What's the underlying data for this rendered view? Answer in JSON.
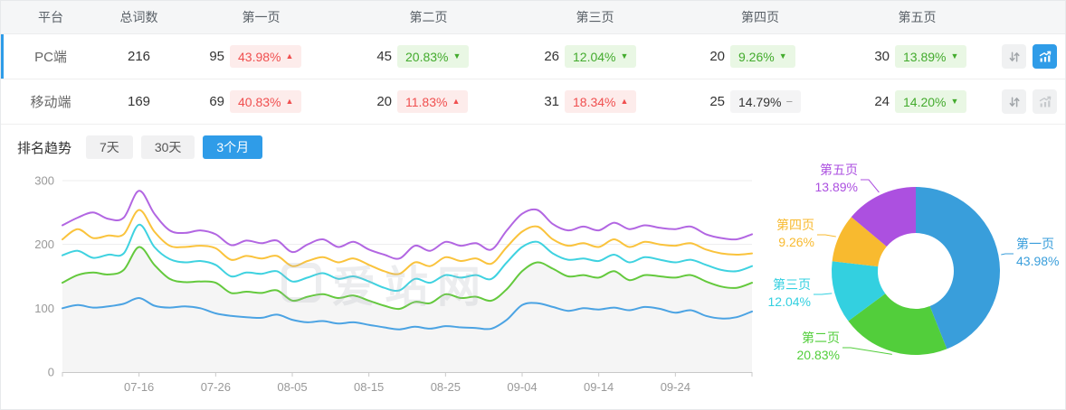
{
  "glyphs": {
    "up": "▲",
    "down": "▼",
    "flat": "−"
  },
  "colors": {
    "accent_blue": "#2f9ce8",
    "badge_up_text": "#f04f4f",
    "badge_up_bg": "#fdeceb",
    "badge_down_text": "#43ab2d",
    "badge_down_bg": "#e9f7e4",
    "badge_flat_bg": "#f4f4f5",
    "selected_row_bar": "#2f9ce8"
  },
  "icons": {
    "sort": "sort-arrows-icon",
    "trend": "trend-chart-icon"
  },
  "table": {
    "headers": [
      "平台",
      "总词数",
      "第一页",
      "第二页",
      "第三页",
      "第四页",
      "第五页"
    ],
    "rows": [
      {
        "platform": "PC端",
        "total": "216",
        "selected": true,
        "pages": [
          {
            "count": "95",
            "pct": "43.98%",
            "trend": "up"
          },
          {
            "count": "45",
            "pct": "20.83%",
            "trend": "down"
          },
          {
            "count": "26",
            "pct": "12.04%",
            "trend": "down"
          },
          {
            "count": "20",
            "pct": "9.26%",
            "trend": "down"
          },
          {
            "count": "30",
            "pct": "13.89%",
            "trend": "down"
          }
        ],
        "chart_button_active": true
      },
      {
        "platform": "移动端",
        "total": "169",
        "selected": false,
        "pages": [
          {
            "count": "69",
            "pct": "40.83%",
            "trend": "up"
          },
          {
            "count": "20",
            "pct": "11.83%",
            "trend": "up"
          },
          {
            "count": "31",
            "pct": "18.34%",
            "trend": "up"
          },
          {
            "count": "25",
            "pct": "14.79%",
            "trend": "flat"
          },
          {
            "count": "24",
            "pct": "14.20%",
            "trend": "down"
          }
        ],
        "chart_button_active": false
      }
    ]
  },
  "trend_section": {
    "title": "排名趋势",
    "tabs": [
      {
        "label": "7天",
        "active": false
      },
      {
        "label": "30天",
        "active": false
      },
      {
        "label": "3个月",
        "active": true
      }
    ]
  },
  "watermark": "爱站网",
  "chart_data": [
    {
      "type": "line",
      "title": "排名趋势 3个月",
      "stacked_cumulative": true,
      "grid": true,
      "ylim": [
        0,
        300
      ],
      "y_ticks": [
        0,
        100,
        200,
        300
      ],
      "x_range_days": [
        0,
        90
      ],
      "sample_step_days": 2,
      "x_tick_days": [
        10,
        20,
        30,
        40,
        50,
        60,
        70,
        80
      ],
      "x_tick_labels": [
        "07-16",
        "07-26",
        "08-05",
        "08-15",
        "08-25",
        "09-04",
        "09-14",
        "09-24"
      ],
      "series": [
        {
          "name": "第一页",
          "color": "#4ba3e3",
          "values": [
            100,
            105,
            101,
            103,
            107,
            116,
            104,
            101,
            103,
            100,
            92,
            88,
            86,
            85,
            90,
            82,
            78,
            80,
            76,
            78,
            74,
            70,
            67,
            71,
            68,
            72,
            70,
            69,
            68,
            82,
            105,
            108,
            102,
            96,
            100,
            98,
            101,
            97,
            102,
            99,
            93,
            97,
            88,
            84,
            86,
            95
          ]
        },
        {
          "name": "第二页",
          "color": "#64c93d",
          "area_fill": "#f5f5f5",
          "values": [
            140,
            152,
            156,
            153,
            160,
            196,
            168,
            146,
            141,
            142,
            140,
            124,
            126,
            124,
            128,
            112,
            118,
            122,
            116,
            120,
            112,
            104,
            99,
            110,
            108,
            122,
            116,
            118,
            112,
            130,
            158,
            172,
            162,
            150,
            152,
            148,
            158,
            144,
            152,
            150,
            148,
            152,
            142,
            134,
            132,
            140
          ]
        },
        {
          "name": "第三页",
          "color": "#3fd2e0",
          "values": [
            183,
            190,
            179,
            184,
            186,
            231,
            196,
            177,
            172,
            174,
            168,
            150,
            156,
            154,
            158,
            142,
            148,
            155,
            146,
            150,
            142,
            132,
            128,
            146,
            140,
            152,
            148,
            152,
            146,
            172,
            196,
            204,
            186,
            176,
            178,
            174,
            184,
            172,
            180,
            176,
            172,
            176,
            168,
            160,
            158,
            166
          ]
        },
        {
          "name": "第四页",
          "color": "#fac33c",
          "values": [
            208,
            224,
            210,
            214,
            216,
            254,
            220,
            198,
            196,
            198,
            194,
            176,
            182,
            178,
            182,
            166,
            174,
            180,
            172,
            178,
            168,
            158,
            154,
            172,
            166,
            180,
            174,
            178,
            170,
            196,
            220,
            228,
            208,
            198,
            202,
            196,
            208,
            196,
            204,
            200,
            198,
            202,
            192,
            186,
            184,
            186
          ]
        },
        {
          "name": "第五页",
          "color": "#b266e2",
          "values": [
            230,
            242,
            250,
            240,
            242,
            284,
            248,
            222,
            218,
            222,
            216,
            199,
            206,
            202,
            206,
            188,
            200,
            208,
            196,
            204,
            192,
            184,
            178,
            198,
            190,
            204,
            198,
            202,
            192,
            222,
            248,
            254,
            232,
            222,
            228,
            222,
            234,
            224,
            230,
            226,
            224,
            228,
            216,
            210,
            208,
            216
          ]
        }
      ]
    },
    {
      "type": "pie",
      "donut": true,
      "inner_radius_ratio": 0.45,
      "legend_position": "labels-with-leader-lines",
      "slices": [
        {
          "label": "第一页",
          "value": 43.98,
          "pct_label": "43.98%",
          "color": "#399edb"
        },
        {
          "label": "第二页",
          "value": 20.83,
          "pct_label": "20.83%",
          "color": "#52ce3b"
        },
        {
          "label": "第三页",
          "value": 12.04,
          "pct_label": "12.04%",
          "color": "#33d0e0"
        },
        {
          "label": "第四页",
          "value": 9.26,
          "pct_label": "9.26%",
          "color": "#f8ba2f"
        },
        {
          "label": "第五页",
          "value": 13.89,
          "pct_label": "13.89%",
          "color": "#ac50e0"
        }
      ]
    }
  ]
}
